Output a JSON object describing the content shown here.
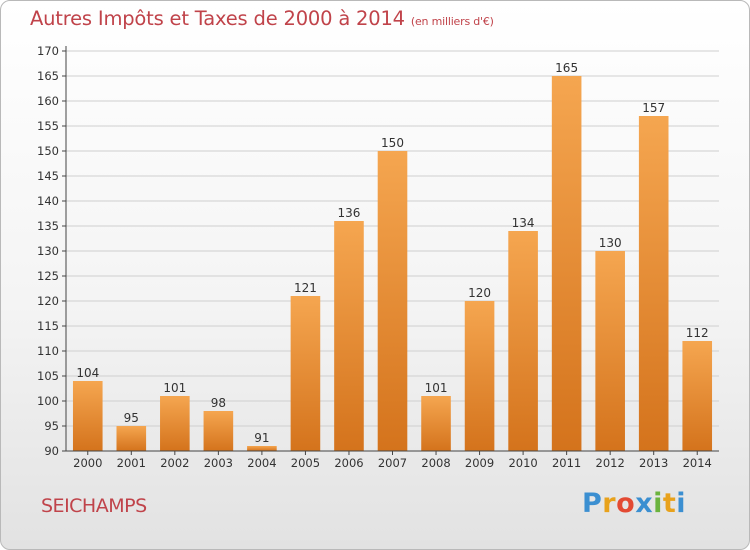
{
  "header": {
    "title": "Autres Impôts et Taxes de 2000 à 2014",
    "subtitle": "(en milliers d'€)"
  },
  "footer": {
    "place": "SEICHAMPS",
    "logo_letters": [
      {
        "ch": "P",
        "color": "#3b8fd1"
      },
      {
        "ch": "r",
        "color": "#e8a21c"
      },
      {
        "ch": "o",
        "color": "#e34a33"
      },
      {
        "ch": "x",
        "color": "#3b8fd1"
      },
      {
        "ch": "i",
        "color": "#6bb33e"
      },
      {
        "ch": "t",
        "color": "#e8a21c"
      },
      {
        "ch": "i",
        "color": "#3b8fd1"
      }
    ]
  },
  "colors": {
    "bar_light": "#f5a650",
    "bar_dark": "#d4731c",
    "axis": "#444444",
    "grid": "#cfcfcf",
    "text_accent": "#c0434a"
  },
  "chart_data": {
    "type": "bar",
    "categories": [
      "2000",
      "2001",
      "2002",
      "2003",
      "2004",
      "2005",
      "2006",
      "2007",
      "2008",
      "2009",
      "2010",
      "2011",
      "2012",
      "2013",
      "2014"
    ],
    "values": [
      104,
      95,
      101,
      98,
      91,
      121,
      136,
      150,
      101,
      120,
      134,
      165,
      130,
      157,
      112
    ],
    "title": "Autres Impôts et Taxes de 2000 à 2014",
    "subtitle": "(en milliers d'€)",
    "xlabel": "",
    "ylabel": "",
    "ylim": [
      90,
      170
    ],
    "yticks": [
      90,
      95,
      100,
      105,
      110,
      115,
      120,
      125,
      130,
      135,
      140,
      145,
      150,
      155,
      160,
      165,
      170
    ],
    "grid": true,
    "legend": "none"
  }
}
